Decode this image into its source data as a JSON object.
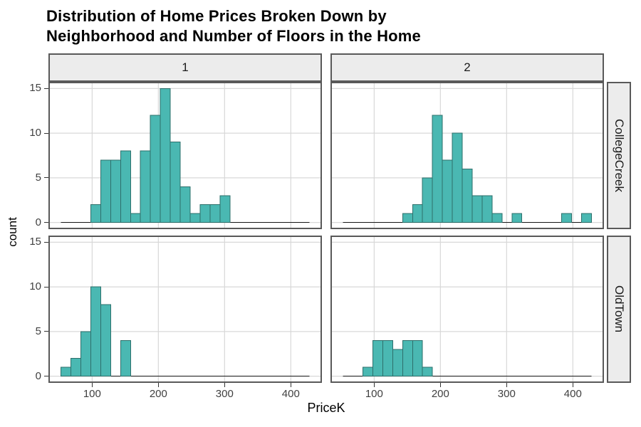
{
  "title": {
    "line1": "Distribution of Home Prices Broken Down by",
    "line2": "Neighborhood and Number of Floors in the Home"
  },
  "chart_data": {
    "type": "histogram",
    "layout": "facet-grid-2x2",
    "facet_cols": [
      "1",
      "2"
    ],
    "facet_rows": [
      "CollegeCreek",
      "OldTown"
    ],
    "xlabel": "PriceK",
    "ylabel": "count",
    "x_ticks": [
      100,
      200,
      300,
      400
    ],
    "y_ticks": [
      0,
      5,
      10,
      15
    ],
    "x_domain": [
      34,
      447
    ],
    "y_domain": [
      -0.75,
      15.75
    ],
    "bin_start": 53,
    "bin_width": 15,
    "n_bins": 25,
    "baseline_range": [
      53,
      428
    ],
    "grid": "major-only",
    "legend": "none",
    "panels": [
      {
        "row": "CollegeCreek",
        "col": "1",
        "counts": [
          0,
          0,
          0,
          2,
          7,
          7,
          8,
          1,
          8,
          12,
          15,
          9,
          4,
          1,
          2,
          2,
          3,
          0,
          0,
          0,
          0,
          0,
          0,
          0,
          0
        ]
      },
      {
        "row": "CollegeCreek",
        "col": "2",
        "counts": [
          0,
          0,
          0,
          0,
          0,
          0,
          1,
          2,
          5,
          12,
          7,
          10,
          6,
          3,
          3,
          1,
          0,
          1,
          0,
          0,
          0,
          0,
          1,
          0,
          1
        ]
      },
      {
        "row": "OldTown",
        "col": "1",
        "counts": [
          1,
          2,
          5,
          10,
          8,
          0,
          4,
          0,
          0,
          0,
          0,
          0,
          0,
          0,
          0,
          0,
          0,
          0,
          0,
          0,
          0,
          0,
          0,
          0,
          0
        ]
      },
      {
        "row": "OldTown",
        "col": "2",
        "counts": [
          0,
          0,
          1,
          4,
          4,
          3,
          4,
          4,
          1,
          0,
          0,
          0,
          0,
          0,
          0,
          0,
          0,
          0,
          0,
          0,
          0,
          0,
          0,
          0,
          0
        ]
      }
    ],
    "colors": {
      "bar_fill": "#4ab8b2",
      "bar_stroke": "#2e6f6b",
      "strip_bg": "#ececec",
      "panel_border": "#595959",
      "gridline": "#d8d8d8",
      "baseline": "#1a1a1a",
      "axis_text": "#404040",
      "tick_mark": "#333333"
    }
  }
}
